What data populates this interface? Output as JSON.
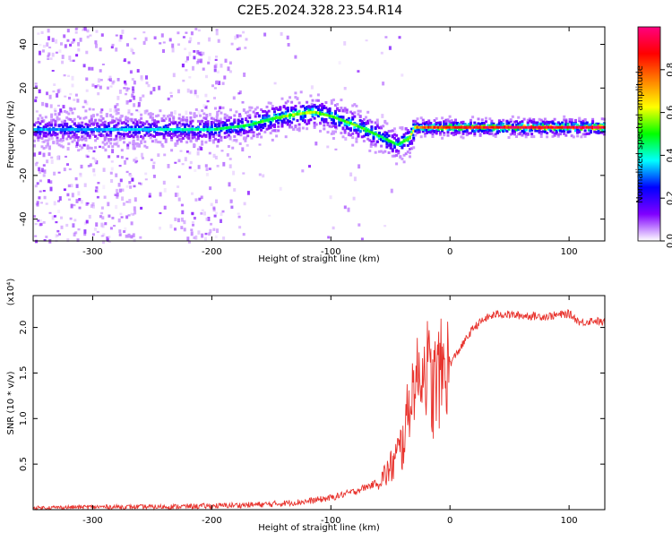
{
  "title": "C2E5.2024.328.23.54.R14",
  "chart_data": [
    {
      "type": "heatmap",
      "xlabel": "Height of straight line (km)",
      "ylabel": "Frequency (Hz)",
      "xlim": [
        -350,
        130
      ],
      "ylim": [
        -50,
        48
      ],
      "x_ticks": [
        -300,
        -200,
        -100,
        0,
        100
      ],
      "x_tick_labels": [
        "-300",
        "-200",
        "-100",
        "0",
        "100"
      ],
      "y_ticks": [
        -40,
        -20,
        0,
        20,
        40
      ],
      "y_tick_labels": [
        "-40",
        "-20",
        "0",
        "20",
        "40"
      ],
      "colorbar": {
        "label": "Normalized spectral amplitude",
        "range": [
          0,
          1
        ],
        "ticks": [
          0.0,
          0.2,
          0.4,
          0.6,
          0.8
        ],
        "tick_labels": [
          "0.0",
          "0.2",
          "0.4",
          "0.6",
          "0.8"
        ],
        "colormap": [
          "#ffffff",
          "#8000ff",
          "#0000ff",
          "#00ffff",
          "#00ff00",
          "#ffff00",
          "#ff8000",
          "#ff0000",
          "#ff0080"
        ]
      },
      "ridge": {
        "x": [
          -350,
          -300,
          -250,
          -200,
          -170,
          -150,
          -130,
          -115,
          -100,
          -80,
          -60,
          -45,
          -35,
          -30,
          -20,
          0,
          50,
          100,
          130
        ],
        "frequency": [
          1,
          1,
          1,
          1,
          3,
          6,
          8,
          9,
          7,
          3,
          -2,
          -6,
          -3,
          2,
          2,
          2,
          2,
          2,
          2
        ],
        "peak_amplitude": [
          0.35,
          0.35,
          0.4,
          0.45,
          0.5,
          0.55,
          0.6,
          0.6,
          0.55,
          0.55,
          0.5,
          0.5,
          0.55,
          0.75,
          0.85,
          0.9,
          0.95,
          0.98,
          0.98
        ]
      },
      "grid": false
    },
    {
      "type": "line",
      "xlabel": "Height of straight line (km)",
      "ylabel": "SNR (10 * v/v)",
      "y_multiplier_label": "(x10⁴)",
      "xlim": [
        -350,
        130
      ],
      "ylim": [
        0,
        2.35
      ],
      "x_ticks": [
        -300,
        -200,
        -100,
        0,
        100
      ],
      "x_tick_labels": [
        "-300",
        "-200",
        "-100",
        "0",
        "100"
      ],
      "y_ticks": [
        0.5,
        1.0,
        1.5,
        2.0
      ],
      "y_tick_labels": [
        "0.5",
        "1.0",
        "1.5",
        "2.0"
      ],
      "series": [
        {
          "color": "#e8332d",
          "x": [
            -350,
            -300,
            -250,
            -200,
            -150,
            -120,
            -100,
            -80,
            -60,
            -50,
            -40,
            -35,
            -30,
            -25,
            -20,
            -15,
            -10,
            -5,
            0,
            10,
            20,
            30,
            40,
            60,
            80,
            100,
            110,
            120,
            130
          ],
          "values": [
            0.02,
            0.03,
            0.03,
            0.04,
            0.06,
            0.09,
            0.13,
            0.2,
            0.3,
            0.45,
            0.7,
            1.1,
            1.4,
            1.5,
            1.6,
            1.3,
            1.45,
            1.55,
            1.6,
            1.8,
            2.0,
            2.1,
            2.15,
            2.13,
            2.12,
            2.15,
            2.05,
            2.08,
            2.05
          ]
        }
      ],
      "grid": false
    }
  ]
}
